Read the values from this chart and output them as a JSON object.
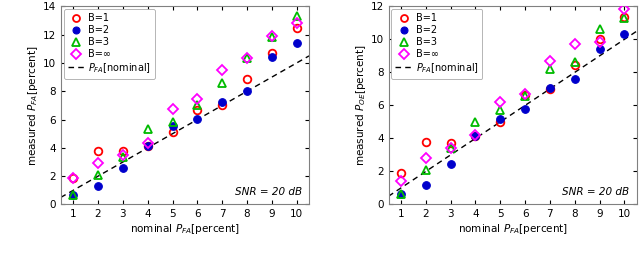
{
  "x": [
    1,
    2,
    3,
    4,
    5,
    6,
    7,
    8,
    9,
    10
  ],
  "left_B1": [
    1.9,
    3.8,
    3.75,
    4.15,
    5.1,
    6.65,
    7.05,
    8.9,
    10.7,
    12.5
  ],
  "left_B2": [
    0.7,
    1.3,
    2.6,
    4.15,
    5.55,
    6.05,
    7.25,
    8.0,
    10.4,
    11.4
  ],
  "left_B3": [
    0.7,
    2.05,
    3.35,
    5.3,
    5.85,
    7.0,
    8.6,
    10.35,
    11.85,
    13.3
  ],
  "left_Binf": [
    1.85,
    2.9,
    3.5,
    4.35,
    6.75,
    7.45,
    9.5,
    10.35,
    11.9,
    12.85
  ],
  "right_B1": [
    1.9,
    3.8,
    3.75,
    4.15,
    5.0,
    6.65,
    7.0,
    8.45,
    10.05,
    11.35
  ],
  "right_B2": [
    0.65,
    1.2,
    2.45,
    4.15,
    5.15,
    5.8,
    7.05,
    7.6,
    9.4,
    10.3
  ],
  "right_B3": [
    0.65,
    2.1,
    3.45,
    5.0,
    5.7,
    6.6,
    8.2,
    8.6,
    10.65,
    11.3
  ],
  "right_Binf": [
    1.4,
    2.8,
    3.4,
    4.2,
    6.2,
    6.7,
    8.7,
    9.7,
    9.85,
    11.85
  ],
  "diag": [
    1,
    2,
    3,
    4,
    5,
    6,
    7,
    8,
    9,
    10
  ],
  "color_B1": "#ff0000",
  "color_B2": "#0000cc",
  "color_B3": "#00bb00",
  "color_Binf": "#ff00ff",
  "color_diag": "#000000",
  "left_ylabel": "measured $P_{FA}$[percent]",
  "right_ylabel": "measured $P_{OE}$[percent]",
  "xlabel": "nominal $P_{FA}$[percent]",
  "snr_text": "SNR = 20 dB",
  "left_ylim": [
    0,
    14
  ],
  "right_ylim": [
    0,
    12
  ],
  "xlim": [
    0.5,
    10.5
  ],
  "xticks": [
    1,
    2,
    3,
    4,
    5,
    6,
    7,
    8,
    9,
    10
  ],
  "left_yticks": [
    0,
    2,
    4,
    6,
    8,
    10,
    12,
    14
  ],
  "right_yticks": [
    0,
    2,
    4,
    6,
    8,
    10,
    12
  ]
}
